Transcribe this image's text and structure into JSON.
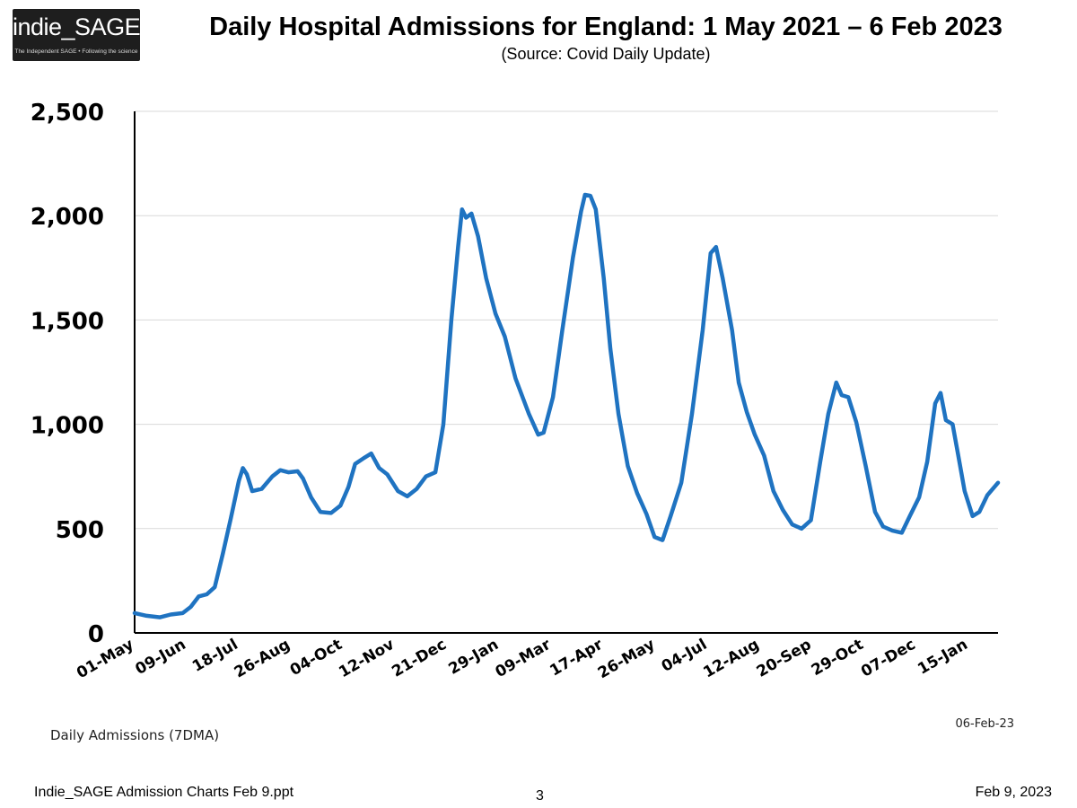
{
  "logo": {
    "text": "indie_SAGE",
    "tagline": "The Independent SAGE • Following the science"
  },
  "header": {
    "title": "Daily Hospital Admissions for England: 1 May 2021 – 6 Feb 2023",
    "subtitle": "(Source: Covid Daily Update)"
  },
  "chart_data": {
    "type": "line",
    "title": "Daily Hospital Admissions for England: 1 May 2021 – 6 Feb 2023",
    "subtitle": "(Source: Covid Daily Update)",
    "xlabel": "",
    "ylabel": "",
    "ylim": [
      0,
      2500
    ],
    "yticks": [
      0,
      500,
      1000,
      1500,
      2000,
      2500
    ],
    "ytick_labels": [
      "0",
      "500",
      "1,000",
      "1,500",
      "2,000",
      "2,500"
    ],
    "xlim": [
      "2021-05-01",
      "2023-02-06"
    ],
    "xticks": [
      "2021-05-01",
      "2021-06-09",
      "2021-07-18",
      "2021-08-26",
      "2021-10-04",
      "2021-11-12",
      "2021-12-21",
      "2022-01-29",
      "2022-03-09",
      "2022-04-17",
      "2022-05-26",
      "2022-07-04",
      "2022-08-12",
      "2022-09-20",
      "2022-10-29",
      "2022-12-07",
      "2023-01-15"
    ],
    "xtick_labels": [
      "01-May",
      "09-Jun",
      "18-Jul",
      "26-Aug",
      "04-Oct",
      "12-Nov",
      "21-Dec",
      "29-Jan",
      "09-Mar",
      "17-Apr",
      "26-May",
      "04-Jul",
      "12-Aug",
      "20-Sep",
      "29-Oct",
      "07-Dec",
      "15-Jan"
    ],
    "grid": "horizontal",
    "legend": "none",
    "series": [
      {
        "name": "Daily Admissions (7DMA)",
        "color": "#1f73c1",
        "points": [
          [
            "2021-05-01",
            95
          ],
          [
            "2021-05-10",
            82
          ],
          [
            "2021-05-20",
            75
          ],
          [
            "2021-05-28",
            88
          ],
          [
            "2021-06-06",
            95
          ],
          [
            "2021-06-12",
            125
          ],
          [
            "2021-06-18",
            175
          ],
          [
            "2021-06-24",
            185
          ],
          [
            "2021-06-30",
            220
          ],
          [
            "2021-07-06",
            380
          ],
          [
            "2021-07-12",
            550
          ],
          [
            "2021-07-18",
            730
          ],
          [
            "2021-07-21",
            790
          ],
          [
            "2021-07-24",
            760
          ],
          [
            "2021-07-28",
            680
          ],
          [
            "2021-08-04",
            690
          ],
          [
            "2021-08-12",
            750
          ],
          [
            "2021-08-18",
            780
          ],
          [
            "2021-08-24",
            770
          ],
          [
            "2021-08-31",
            775
          ],
          [
            "2021-09-04",
            740
          ],
          [
            "2021-09-10",
            650
          ],
          [
            "2021-09-17",
            580
          ],
          [
            "2021-09-25",
            575
          ],
          [
            "2021-10-02",
            610
          ],
          [
            "2021-10-08",
            700
          ],
          [
            "2021-10-13",
            810
          ],
          [
            "2021-10-20",
            840
          ],
          [
            "2021-10-25",
            860
          ],
          [
            "2021-10-31",
            790
          ],
          [
            "2021-11-06",
            760
          ],
          [
            "2021-11-14",
            680
          ],
          [
            "2021-11-21",
            655
          ],
          [
            "2021-11-28",
            690
          ],
          [
            "2021-12-05",
            750
          ],
          [
            "2021-12-12",
            770
          ],
          [
            "2021-12-18",
            1000
          ],
          [
            "2021-12-24",
            1500
          ],
          [
            "2021-12-29",
            1850
          ],
          [
            "2022-01-01",
            2030
          ],
          [
            "2022-01-04",
            1990
          ],
          [
            "2022-01-08",
            2010
          ],
          [
            "2022-01-13",
            1900
          ],
          [
            "2022-01-19",
            1700
          ],
          [
            "2022-01-26",
            1530
          ],
          [
            "2022-02-02",
            1420
          ],
          [
            "2022-02-10",
            1220
          ],
          [
            "2022-02-20",
            1050
          ],
          [
            "2022-02-27",
            950
          ],
          [
            "2022-03-03",
            960
          ],
          [
            "2022-03-10",
            1130
          ],
          [
            "2022-03-17",
            1450
          ],
          [
            "2022-03-25",
            1800
          ],
          [
            "2022-03-31",
            2020
          ],
          [
            "2022-04-03",
            2100
          ],
          [
            "2022-04-07",
            2095
          ],
          [
            "2022-04-11",
            2030
          ],
          [
            "2022-04-17",
            1700
          ],
          [
            "2022-04-22",
            1360
          ],
          [
            "2022-04-28",
            1050
          ],
          [
            "2022-05-05",
            800
          ],
          [
            "2022-05-12",
            670
          ],
          [
            "2022-05-19",
            570
          ],
          [
            "2022-05-25",
            460
          ],
          [
            "2022-05-31",
            445
          ],
          [
            "2022-06-06",
            560
          ],
          [
            "2022-06-14",
            720
          ],
          [
            "2022-06-22",
            1050
          ],
          [
            "2022-06-30",
            1450
          ],
          [
            "2022-07-06",
            1820
          ],
          [
            "2022-07-10",
            1850
          ],
          [
            "2022-07-15",
            1700
          ],
          [
            "2022-07-22",
            1450
          ],
          [
            "2022-07-27",
            1200
          ],
          [
            "2022-08-02",
            1060
          ],
          [
            "2022-08-08",
            950
          ],
          [
            "2022-08-15",
            850
          ],
          [
            "2022-08-22",
            680
          ],
          [
            "2022-08-29",
            590
          ],
          [
            "2022-09-05",
            520
          ],
          [
            "2022-09-12",
            500
          ],
          [
            "2022-09-19",
            540
          ],
          [
            "2022-09-26",
            820
          ],
          [
            "2022-10-02",
            1050
          ],
          [
            "2022-10-08",
            1200
          ],
          [
            "2022-10-12",
            1140
          ],
          [
            "2022-10-17",
            1130
          ],
          [
            "2022-10-23",
            1010
          ],
          [
            "2022-10-30",
            800
          ],
          [
            "2022-11-06",
            580
          ],
          [
            "2022-11-12",
            510
          ],
          [
            "2022-11-19",
            490
          ],
          [
            "2022-11-26",
            480
          ],
          [
            "2022-12-02",
            560
          ],
          [
            "2022-12-09",
            650
          ],
          [
            "2022-12-15",
            820
          ],
          [
            "2022-12-21",
            1100
          ],
          [
            "2022-12-25",
            1150
          ],
          [
            "2022-12-29",
            1020
          ],
          [
            "2023-01-03",
            1000
          ],
          [
            "2023-01-07",
            860
          ],
          [
            "2023-01-12",
            680
          ],
          [
            "2023-01-18",
            560
          ],
          [
            "2023-01-23",
            580
          ],
          [
            "2023-01-29",
            660
          ],
          [
            "2023-02-06",
            720
          ]
        ]
      }
    ],
    "annotations": [
      {
        "text": "Daily Admissions (7DMA)",
        "position": "bottom-left"
      },
      {
        "text": "06-Feb-23",
        "position": "bottom-right"
      }
    ]
  },
  "footer": {
    "filename": "Indie_SAGE Admission Charts Feb 9.ppt",
    "page_number": "3",
    "date": "Feb 9, 2023"
  }
}
